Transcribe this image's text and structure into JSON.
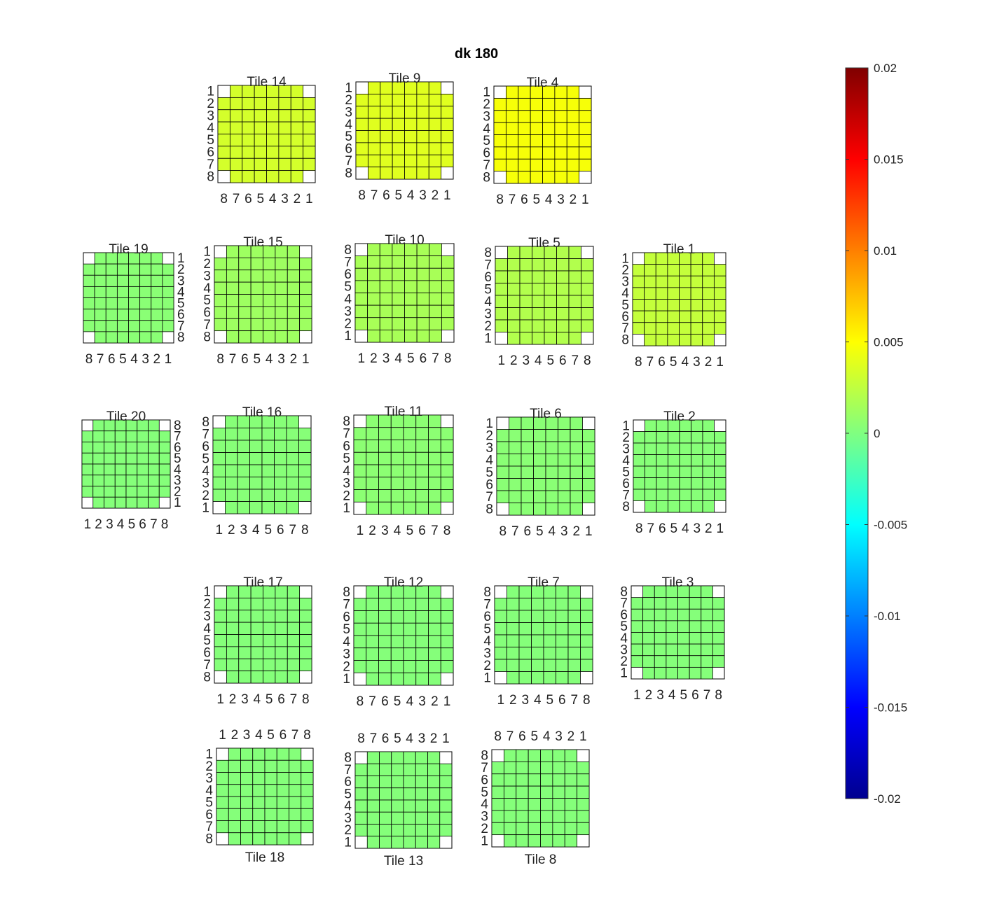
{
  "title": "dk 180",
  "chart_data": {
    "type": "heatmap",
    "title": "dk 180",
    "colormap": "jet",
    "clim": [
      -0.02,
      0.02
    ],
    "colorbar": {
      "ticks": [
        0.02,
        0.015,
        0.01,
        0.005,
        0,
        -0.005,
        -0.01,
        -0.015,
        -0.02
      ],
      "tick_labels": [
        "0.02",
        "0.015",
        "0.01",
        "0.005",
        "0",
        "-0.005",
        "-0.01",
        "-0.015",
        "-0.02"
      ],
      "placement": "right"
    },
    "grid_size": 8,
    "tiles": [
      {
        "name": "Tile 14",
        "value": 0.0033,
        "row_labels": [
          "1",
          "2",
          "3",
          "4",
          "5",
          "6",
          "7",
          "8"
        ],
        "row_side": "left",
        "col_labels": [
          "8",
          "7",
          "6",
          "5",
          "4",
          "3",
          "2",
          "1"
        ],
        "col_side": "bottom",
        "title_side": "top"
      },
      {
        "name": "Tile 9",
        "value": 0.0038,
        "row_labels": [
          "1",
          "2",
          "3",
          "4",
          "5",
          "6",
          "7",
          "8"
        ],
        "row_side": "left",
        "col_labels": [
          "8",
          "7",
          "6",
          "5",
          "4",
          "3",
          "2",
          "1"
        ],
        "col_side": "bottom",
        "title_side": "top"
      },
      {
        "name": "Tile 4",
        "value": 0.0047,
        "row_labels": [
          "1",
          "2",
          "3",
          "4",
          "5",
          "6",
          "7",
          "8"
        ],
        "row_side": "left",
        "col_labels": [
          "8",
          "7",
          "6",
          "5",
          "4",
          "3",
          "2",
          "1"
        ],
        "col_side": "bottom",
        "title_side": "top"
      },
      {
        "name": "Tile 19",
        "value": 0.0004,
        "row_labels": [
          "1",
          "2",
          "3",
          "4",
          "5",
          "6",
          "7",
          "8"
        ],
        "row_side": "right",
        "col_labels": [
          "8",
          "7",
          "6",
          "5",
          "4",
          "3",
          "2",
          "1"
        ],
        "col_side": "bottom",
        "title_side": "top"
      },
      {
        "name": "Tile 15",
        "value": 0.0012,
        "row_labels": [
          "1",
          "2",
          "3",
          "4",
          "5",
          "6",
          "7",
          "8"
        ],
        "row_side": "left",
        "col_labels": [
          "8",
          "7",
          "6",
          "5",
          "4",
          "3",
          "2",
          "1"
        ],
        "col_side": "bottom",
        "title_side": "top"
      },
      {
        "name": "Tile 10",
        "value": 0.0016,
        "row_labels": [
          "8",
          "7",
          "6",
          "5",
          "4",
          "3",
          "2",
          "1"
        ],
        "row_side": "left",
        "col_labels": [
          "1",
          "2",
          "3",
          "4",
          "5",
          "6",
          "7",
          "8"
        ],
        "col_side": "bottom",
        "title_side": "top"
      },
      {
        "name": "Tile 5",
        "value": 0.002,
        "row_labels": [
          "8",
          "7",
          "6",
          "5",
          "4",
          "3",
          "2",
          "1"
        ],
        "row_side": "left",
        "col_labels": [
          "1",
          "2",
          "3",
          "4",
          "5",
          "6",
          "7",
          "8"
        ],
        "col_side": "bottom",
        "title_side": "top"
      },
      {
        "name": "Tile 1",
        "value": 0.0027,
        "row_labels": [
          "1",
          "2",
          "3",
          "4",
          "5",
          "6",
          "7",
          "8"
        ],
        "row_side": "left",
        "col_labels": [
          "8",
          "7",
          "6",
          "5",
          "4",
          "3",
          "2",
          "1"
        ],
        "col_side": "bottom",
        "title_side": "top"
      },
      {
        "name": "Tile 20",
        "value": 0.0002,
        "row_labels": [
          "8",
          "7",
          "6",
          "5",
          "4",
          "3",
          "2",
          "1"
        ],
        "row_side": "right",
        "col_labels": [
          "1",
          "2",
          "3",
          "4",
          "5",
          "6",
          "7",
          "8"
        ],
        "col_side": "bottom",
        "title_side": "top"
      },
      {
        "name": "Tile 16",
        "value": 0.0003,
        "row_labels": [
          "8",
          "7",
          "6",
          "5",
          "4",
          "3",
          "2",
          "1"
        ],
        "row_side": "left",
        "col_labels": [
          "1",
          "2",
          "3",
          "4",
          "5",
          "6",
          "7",
          "8"
        ],
        "col_side": "bottom",
        "title_side": "top"
      },
      {
        "name": "Tile 11",
        "value": 0.0005,
        "row_labels": [
          "8",
          "7",
          "6",
          "5",
          "4",
          "3",
          "2",
          "1"
        ],
        "row_side": "left",
        "col_labels": [
          "1",
          "2",
          "3",
          "4",
          "5",
          "6",
          "7",
          "8"
        ],
        "col_side": "bottom",
        "title_side": "top"
      },
      {
        "name": "Tile 6",
        "value": 0.0004,
        "row_labels": [
          "1",
          "2",
          "3",
          "4",
          "5",
          "6",
          "7",
          "8"
        ],
        "row_side": "left",
        "col_labels": [
          "8",
          "7",
          "6",
          "5",
          "4",
          "3",
          "2",
          "1"
        ],
        "col_side": "bottom",
        "title_side": "top"
      },
      {
        "name": "Tile 2",
        "value": 0.0003,
        "row_labels": [
          "1",
          "2",
          "3",
          "4",
          "5",
          "6",
          "7",
          "8"
        ],
        "row_side": "left",
        "col_labels": [
          "8",
          "7",
          "6",
          "5",
          "4",
          "3",
          "2",
          "1"
        ],
        "col_side": "bottom",
        "title_side": "top"
      },
      {
        "name": "Tile 17",
        "value": 0.0002,
        "row_labels": [
          "1",
          "2",
          "3",
          "4",
          "5",
          "6",
          "7",
          "8"
        ],
        "row_side": "left",
        "col_labels": [
          "1",
          "2",
          "3",
          "4",
          "5",
          "6",
          "7",
          "8"
        ],
        "col_side": "bottom",
        "title_side": "top"
      },
      {
        "name": "Tile 12",
        "value": 0.0002,
        "row_labels": [
          "8",
          "7",
          "6",
          "5",
          "4",
          "3",
          "2",
          "1"
        ],
        "row_side": "left",
        "col_labels": [
          "8",
          "7",
          "6",
          "5",
          "4",
          "3",
          "2",
          "1"
        ],
        "col_side": "bottom",
        "title_side": "top"
      },
      {
        "name": "Tile 7",
        "value": 0.0002,
        "row_labels": [
          "8",
          "7",
          "6",
          "5",
          "4",
          "3",
          "2",
          "1"
        ],
        "row_side": "left",
        "col_labels": [
          "1",
          "2",
          "3",
          "4",
          "5",
          "6",
          "7",
          "8"
        ],
        "col_side": "bottom",
        "title_side": "top"
      },
      {
        "name": "Tile 3",
        "value": 0.0002,
        "row_labels": [
          "8",
          "7",
          "6",
          "5",
          "4",
          "3",
          "2",
          "1"
        ],
        "row_side": "left",
        "col_labels": [
          "1",
          "2",
          "3",
          "4",
          "5",
          "6",
          "7",
          "8"
        ],
        "col_side": "bottom",
        "title_side": "top"
      },
      {
        "name": "Tile 18",
        "value": 0.0002,
        "row_labels": [
          "1",
          "2",
          "3",
          "4",
          "5",
          "6",
          "7",
          "8"
        ],
        "row_side": "left",
        "col_labels": [
          "1",
          "2",
          "3",
          "4",
          "5",
          "6",
          "7",
          "8"
        ],
        "col_side": "top",
        "title_side": "bottom"
      },
      {
        "name": "Tile 13",
        "value": 0.0002,
        "row_labels": [
          "8",
          "7",
          "6",
          "5",
          "4",
          "3",
          "2",
          "1"
        ],
        "row_side": "left",
        "col_labels": [
          "8",
          "7",
          "6",
          "5",
          "4",
          "3",
          "2",
          "1"
        ],
        "col_side": "top",
        "title_side": "bottom"
      },
      {
        "name": "Tile 8",
        "value": 0.0002,
        "row_labels": [
          "8",
          "7",
          "6",
          "5",
          "4",
          "3",
          "2",
          "1"
        ],
        "row_side": "left",
        "col_labels": [
          "8",
          "7",
          "6",
          "5",
          "4",
          "3",
          "2",
          "1"
        ],
        "col_side": "top",
        "title_side": "bottom"
      }
    ]
  }
}
